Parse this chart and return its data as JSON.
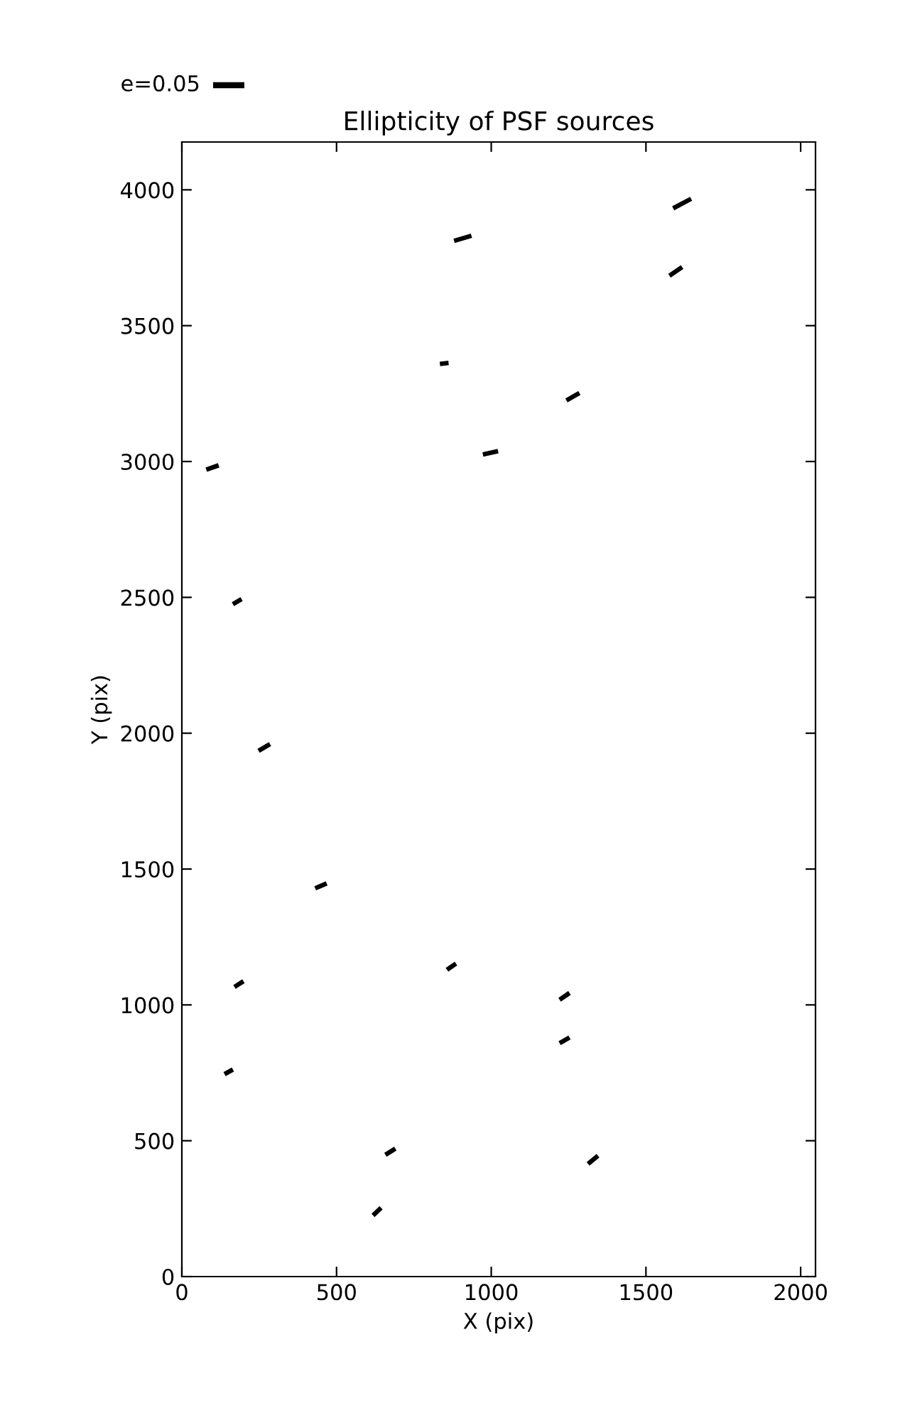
{
  "chart_data": {
    "type": "line",
    "title": "Ellipticity of PSF sources",
    "xlabel": "X (pix)",
    "ylabel": "Y (pix)",
    "xlim": [
      0,
      2048
    ],
    "ylim": [
      0,
      4176
    ],
    "xticks": [
      0,
      500,
      1000,
      1500,
      2000
    ],
    "yticks": [
      0,
      500,
      1000,
      1500,
      2000,
      2500,
      3000,
      3500,
      4000
    ],
    "grid": false,
    "legend": false,
    "marker": "none",
    "line_style": "solid",
    "annotations": [
      "e=0.05"
    ],
    "series": [
      {
        "color": "#000000",
        "x": [
          1588,
          1646
        ],
        "values": [
          3932,
          3967
        ]
      },
      {
        "color": "#000000",
        "x": [
          880,
          936
        ],
        "values": [
          3812,
          3831
        ]
      },
      {
        "color": "#000000",
        "x": [
          1576,
          1617
        ],
        "values": [
          3684,
          3716
        ]
      },
      {
        "color": "#000000",
        "x": [
          834,
          862
        ],
        "values": [
          3359,
          3363
        ]
      },
      {
        "color": "#000000",
        "x": [
          1243,
          1285
        ],
        "values": [
          3225,
          3252
        ]
      },
      {
        "color": "#000000",
        "x": [
          973,
          1022
        ],
        "values": [
          3026,
          3038
        ]
      },
      {
        "color": "#000000",
        "x": [
          79,
          119
        ],
        "values": [
          2970,
          2986
        ]
      },
      {
        "color": "#000000",
        "x": [
          165,
          193
        ],
        "values": [
          2475,
          2494
        ]
      },
      {
        "color": "#000000",
        "x": [
          248,
          285
        ],
        "values": [
          1935,
          1960
        ]
      },
      {
        "color": "#000000",
        "x": [
          431,
          468
        ],
        "values": [
          1429,
          1447
        ]
      },
      {
        "color": "#000000",
        "x": [
          857,
          886
        ],
        "values": [
          1129,
          1152
        ]
      },
      {
        "color": "#000000",
        "x": [
          170,
          199
        ],
        "values": [
          1066,
          1087
        ]
      },
      {
        "color": "#000000",
        "x": [
          1221,
          1253
        ],
        "values": [
          1019,
          1044
        ]
      },
      {
        "color": "#000000",
        "x": [
          1221,
          1253
        ],
        "values": [
          859,
          880
        ]
      },
      {
        "color": "#000000",
        "x": [
          138,
          165
        ],
        "values": [
          745,
          762
        ]
      },
      {
        "color": "#000000",
        "x": [
          658,
          690
        ],
        "values": [
          448,
          471
        ]
      },
      {
        "color": "#000000",
        "x": [
          1313,
          1345
        ],
        "values": [
          415,
          445
        ]
      },
      {
        "color": "#000000",
        "x": [
          618,
          644
        ],
        "values": [
          225,
          253
        ]
      }
    ]
  }
}
